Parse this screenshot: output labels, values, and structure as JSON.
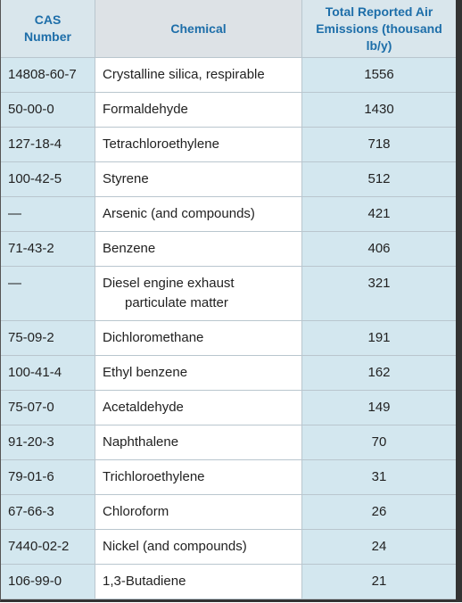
{
  "table": {
    "header": [
      "CAS Number",
      "Chemical",
      "Total Reported Air Emissions (thousand lb/y)"
    ],
    "rows": [
      [
        "14808-60-7",
        "Crystalline silica, respirable",
        1556
      ],
      [
        "50-00-0",
        "Formaldehyde",
        1430
      ],
      [
        "127-18-4",
        "Tetrachloroethylene",
        718
      ],
      [
        "100-42-5",
        "Styrene",
        512
      ],
      [
        "—",
        "Arsenic (and compounds)",
        421
      ],
      [
        "71-43-2",
        "Benzene",
        406
      ],
      [
        "—",
        "Diesel engine exhaust particulate matter",
        321
      ],
      [
        "75-09-2",
        "Dichloromethane",
        191
      ],
      [
        "100-41-4",
        "Ethyl benzene",
        162
      ],
      [
        "75-07-0",
        "Acetaldehyde",
        149
      ],
      [
        "91-20-3",
        "Naphthalene",
        70
      ],
      [
        "79-01-6",
        "Trichloroethylene",
        31
      ],
      [
        "67-66-3",
        "Chloroform",
        26
      ],
      [
        "7440-02-2",
        "Nickel (and compounds)",
        24
      ],
      [
        "106-99-0",
        "1,3-Butadiene",
        21
      ]
    ]
  }
}
